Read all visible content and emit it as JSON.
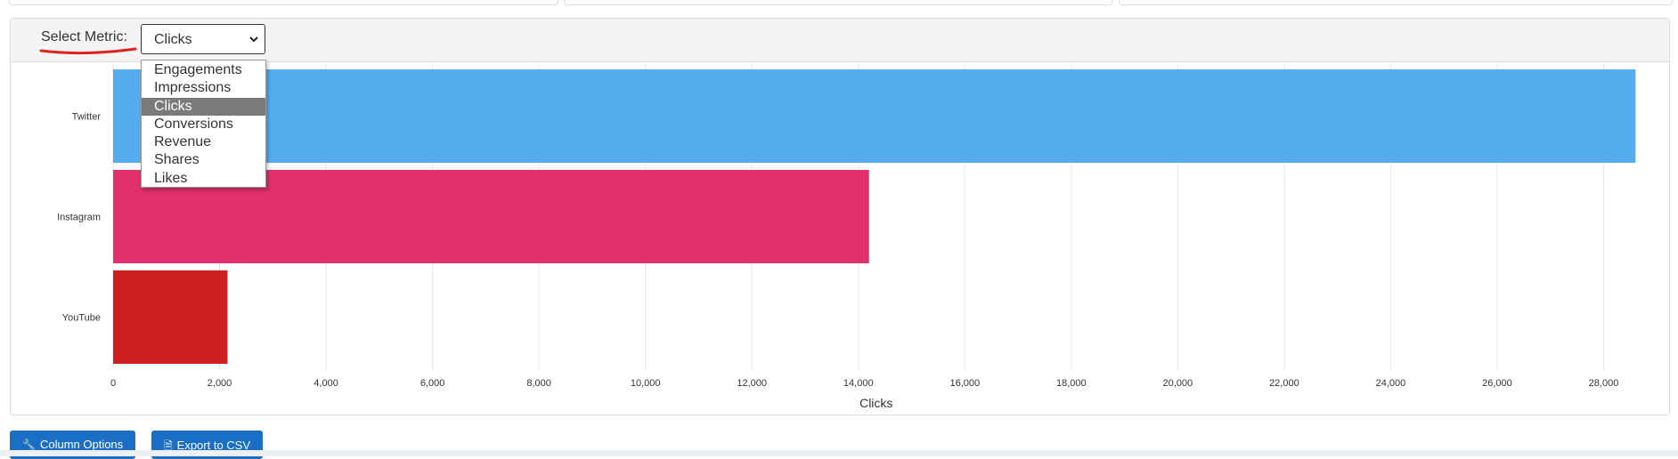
{
  "metric_selector": {
    "label": "Select Metric:",
    "selected": "Clicks",
    "options": [
      "Engagements",
      "Impressions",
      "Clicks",
      "Conversions",
      "Revenue",
      "Shares",
      "Likes"
    ]
  },
  "chart_data": {
    "type": "bar",
    "orientation": "horizontal",
    "categories": [
      "Twitter",
      "Instagram",
      "YouTube"
    ],
    "values": [
      28600,
      14200,
      2150
    ],
    "colors": [
      "#55acee",
      "#e1306c",
      "#cd201f"
    ],
    "xlabel": "Clicks",
    "xlim": [
      0,
      28000
    ],
    "xticks": [
      "0",
      "2,000",
      "4,000",
      "6,000",
      "8,000",
      "10,000",
      "12,000",
      "14,000",
      "16,000",
      "18,000",
      "20,000",
      "22,000",
      "24,000",
      "26,000",
      "28,000"
    ],
    "grid": true
  },
  "buttons": {
    "column_options": "Column Options",
    "export_csv": "Export to CSV"
  },
  "icons": {
    "column_options": "wrench-icon",
    "export_csv": "file-icon",
    "select": "chevron-down-icon"
  }
}
